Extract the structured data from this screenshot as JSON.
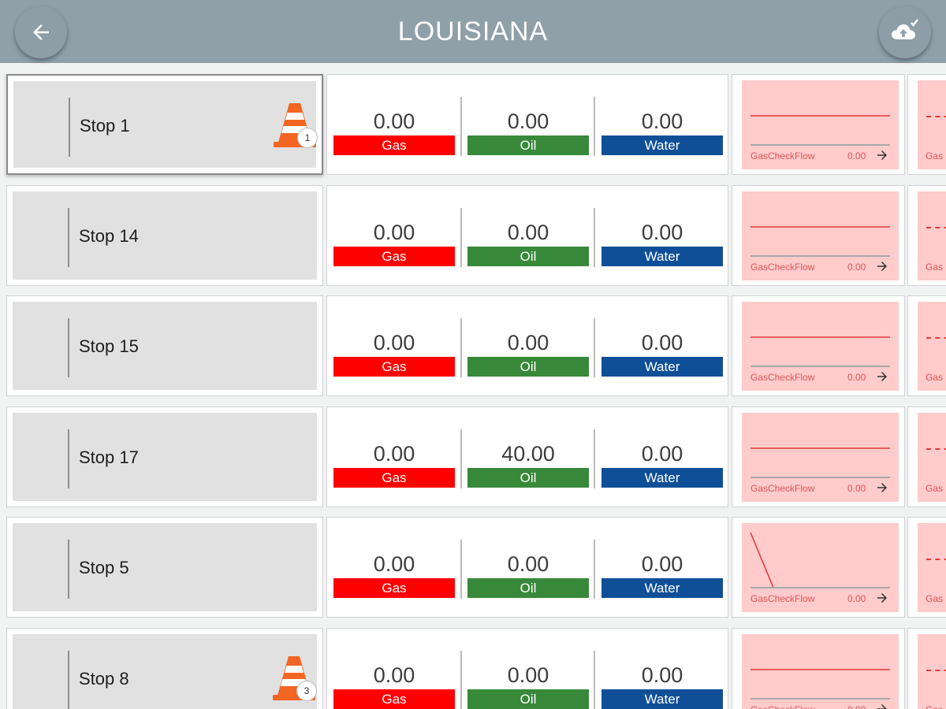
{
  "header": {
    "title": "LOUISIANA",
    "back_icon": "arrow-left-icon",
    "sync_icon": "cloud-upload-check-icon"
  },
  "colors": {
    "header_bg": "#8fa0a9",
    "gas": "#fe0000",
    "oil": "#38893a",
    "water": "#0f4f97",
    "chart_bg": "#ffcbcb",
    "chart_line": "#e33b3b",
    "cone": "#f26522"
  },
  "labels": {
    "gas": "Gas",
    "oil": "Oil",
    "water": "Water",
    "chart_label": "GasCheckFlow",
    "next_label": "Gas"
  },
  "rows": [
    {
      "name": "Stop 1",
      "gas": "0.00",
      "oil": "0.00",
      "water": "0.00",
      "chart_value": "0.00",
      "alert_count": "1",
      "selected": true,
      "trend": "flat"
    },
    {
      "name": "Stop 14",
      "gas": "0.00",
      "oil": "0.00",
      "water": "0.00",
      "chart_value": "0.00",
      "alert_count": "",
      "selected": false,
      "trend": "flat"
    },
    {
      "name": "Stop 15",
      "gas": "0.00",
      "oil": "0.00",
      "water": "0.00",
      "chart_value": "0.00",
      "alert_count": "",
      "selected": false,
      "trend": "flat"
    },
    {
      "name": "Stop 17",
      "gas": "0.00",
      "oil": "40.00",
      "water": "0.00",
      "chart_value": "0.00",
      "alert_count": "",
      "selected": false,
      "trend": "flat"
    },
    {
      "name": "Stop 5",
      "gas": "0.00",
      "oil": "0.00",
      "water": "0.00",
      "chart_value": "0.00",
      "alert_count": "",
      "selected": false,
      "trend": "drop"
    },
    {
      "name": "Stop 8",
      "gas": "0.00",
      "oil": "0.00",
      "water": "0.00",
      "chart_value": "0.00",
      "alert_count": "3",
      "selected": false,
      "trend": "flat"
    }
  ]
}
